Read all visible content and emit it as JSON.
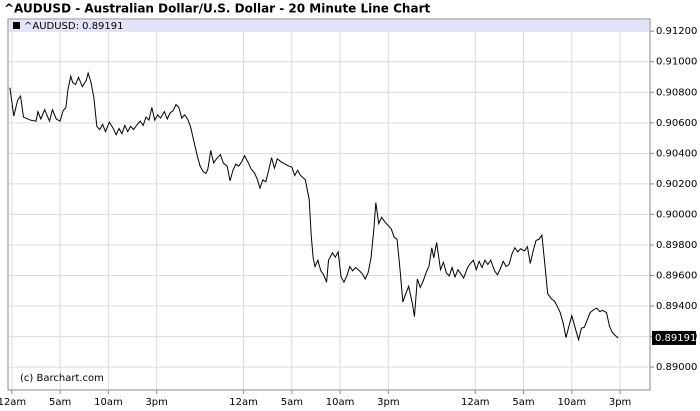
{
  "chart_data": {
    "type": "line",
    "title": "^AUDUSD - Australian Dollar/U.S. Dollar - 20 Minute Line Chart",
    "annotation": "(c) Barchart.com",
    "grid": true,
    "y_axis_side": "right",
    "xlim": [
      -0.4,
      66.1
    ],
    "ylim": [
      0.8885,
      0.9128
    ],
    "xticks": [
      {
        "value": 0,
        "label": "12am"
      },
      {
        "value": 5,
        "label": "5am"
      },
      {
        "value": 10,
        "label": "10am"
      },
      {
        "value": 15,
        "label": "3pm"
      },
      {
        "value": 24,
        "label": "12am"
      },
      {
        "value": 29,
        "label": "5am"
      },
      {
        "value": 34,
        "label": "10am"
      },
      {
        "value": 39,
        "label": "3pm"
      },
      {
        "value": 48,
        "label": "12am"
      },
      {
        "value": 53,
        "label": "5am"
      },
      {
        "value": 58,
        "label": "10am"
      },
      {
        "value": 63,
        "label": "3pm"
      }
    ],
    "yticks": [
      {
        "value": 0.89,
        "label": "0.89000"
      },
      {
        "value": 0.892,
        "label": "0.89200"
      },
      {
        "value": 0.894,
        "label": "0.89400"
      },
      {
        "value": 0.896,
        "label": "0.89600"
      },
      {
        "value": 0.898,
        "label": "0.89800"
      },
      {
        "value": 0.9,
        "label": "0.90000"
      },
      {
        "value": 0.902,
        "label": "0.90200"
      },
      {
        "value": 0.904,
        "label": "0.90400"
      },
      {
        "value": 0.906,
        "label": "0.90600"
      },
      {
        "value": 0.908,
        "label": "0.90800"
      },
      {
        "value": 0.91,
        "label": "0.91000"
      },
      {
        "value": 0.912,
        "label": "0.91200"
      }
    ],
    "x": [
      -0.2,
      0.2,
      0.6,
      0.9,
      1.2,
      1.9,
      2.5,
      2.7,
      3.0,
      3.4,
      3.9,
      4.2,
      4.6,
      5.0,
      5.3,
      5.6,
      5.8,
      6.1,
      6.3,
      6.6,
      6.9,
      7.3,
      7.7,
      7.9,
      8.2,
      8.5,
      8.8,
      9.1,
      9.4,
      9.7,
      10.1,
      10.5,
      10.8,
      11.1,
      11.4,
      11.7,
      12.0,
      12.3,
      12.6,
      13.0,
      13.3,
      13.6,
      13.9,
      14.2,
      14.5,
      14.8,
      15.1,
      15.4,
      15.8,
      16.1,
      16.4,
      16.7,
      17.0,
      17.3,
      17.6,
      17.9,
      18.2,
      18.5,
      18.9,
      19.2,
      19.5,
      19.8,
      20.1,
      20.3,
      20.6,
      20.9,
      21.2,
      21.6,
      21.9,
      22.3,
      22.6,
      22.9,
      23.2,
      23.5,
      23.8,
      24.1,
      24.5,
      24.8,
      25.1,
      25.4,
      25.7,
      26.0,
      26.3,
      26.6,
      26.9,
      27.2,
      27.5,
      27.9,
      28.3,
      28.7,
      29.0,
      29.3,
      29.6,
      29.9,
      30.4,
      30.8,
      31.0,
      31.2,
      31.4,
      31.7,
      32.0,
      32.3,
      32.6,
      32.8,
      33.2,
      33.5,
      33.8,
      34.1,
      34.4,
      34.7,
      35.0,
      35.3,
      35.6,
      36.0,
      36.3,
      36.6,
      36.9,
      37.2,
      37.5,
      37.7,
      38.0,
      38.3,
      38.7,
      39.0,
      39.3,
      39.6,
      39.9,
      40.2,
      40.5,
      40.8,
      41.1,
      41.5,
      41.7,
      42.0,
      42.3,
      42.6,
      42.9,
      43.2,
      43.5,
      43.7,
      44.0,
      44.4,
      44.7,
      45.0,
      45.3,
      45.6,
      45.9,
      46.2,
      46.5,
      46.8,
      47.2,
      47.5,
      47.8,
      48.1,
      48.4,
      48.7,
      49.0,
      49.3,
      49.6,
      50.0,
      50.3,
      50.6,
      50.9,
      51.2,
      51.5,
      51.8,
      52.1,
      52.4,
      52.7,
      53.1,
      53.4,
      53.7,
      54.0,
      54.3,
      54.6,
      54.9,
      55.2,
      55.5,
      55.9,
      56.2,
      56.5,
      56.8,
      57.1,
      57.4,
      57.7,
      58.0,
      58.3,
      58.7,
      59.0,
      59.3,
      59.6,
      59.9,
      60.3,
      60.6,
      60.9,
      61.2,
      61.6,
      61.9,
      62.2,
      62.5,
      62.8
    ],
    "series": [
      {
        "name": "^AUDUSD: 0.89191",
        "color": "#000000",
        "values": [
          0.9083,
          0.90645,
          0.90748,
          0.90775,
          0.90638,
          0.90618,
          0.90611,
          0.90673,
          0.90625,
          0.90686,
          0.90611,
          0.90686,
          0.90625,
          0.90611,
          0.90679,
          0.907,
          0.90816,
          0.90905,
          0.90864,
          0.90851,
          0.90899,
          0.90837,
          0.90878,
          0.90926,
          0.90864,
          0.90762,
          0.90577,
          0.90556,
          0.9059,
          0.90542,
          0.90604,
          0.90563,
          0.90522,
          0.90563,
          0.90529,
          0.90583,
          0.90542,
          0.90577,
          0.90556,
          0.9059,
          0.90611,
          0.90583,
          0.90638,
          0.90618,
          0.907,
          0.90618,
          0.90652,
          0.90631,
          0.90673,
          0.90625,
          0.90666,
          0.90679,
          0.9072,
          0.907,
          0.90631,
          0.90652,
          0.90625,
          0.90577,
          0.90467,
          0.90385,
          0.90316,
          0.90282,
          0.90268,
          0.90296,
          0.90419,
          0.90337,
          0.90364,
          0.90392,
          0.90337,
          0.90316,
          0.9022,
          0.90289,
          0.9033,
          0.90316,
          0.90344,
          0.90385,
          0.90337,
          0.90296,
          0.90275,
          0.90234,
          0.90172,
          0.90227,
          0.90214,
          0.90289,
          0.90371,
          0.90303,
          0.90364,
          0.90344,
          0.9033,
          0.90316,
          0.9031,
          0.90255,
          0.90289,
          0.90255,
          0.90227,
          0.90097,
          0.89871,
          0.8972,
          0.89659,
          0.897,
          0.89631,
          0.89604,
          0.89556,
          0.897,
          0.89748,
          0.8972,
          0.89755,
          0.8959,
          0.89556,
          0.89597,
          0.89659,
          0.89631,
          0.89652,
          0.89631,
          0.89611,
          0.89577,
          0.89618,
          0.89714,
          0.89905,
          0.90077,
          0.8994,
          0.89981,
          0.89946,
          0.89926,
          0.89905,
          0.89851,
          0.89837,
          0.89645,
          0.89426,
          0.89481,
          0.89529,
          0.89412,
          0.8933,
          0.89577,
          0.89522,
          0.89563,
          0.89618,
          0.89659,
          0.89782,
          0.89714,
          0.89816,
          0.89638,
          0.89686,
          0.89618,
          0.89597,
          0.89652,
          0.8959,
          0.89638,
          0.89611,
          0.89583,
          0.89652,
          0.89679,
          0.897,
          0.89638,
          0.89693,
          0.89652,
          0.897,
          0.89672,
          0.897,
          0.89631,
          0.89604,
          0.89645,
          0.89693,
          0.89659,
          0.89672,
          0.89741,
          0.89782,
          0.89755,
          0.89775,
          0.89761,
          0.89789,
          0.89679,
          0.89761,
          0.8983,
          0.89837,
          0.89864,
          0.89679,
          0.89481,
          0.89446,
          0.89433,
          0.89398,
          0.89357,
          0.89289,
          0.89193,
          0.89268,
          0.89337,
          0.89268,
          0.89179,
          0.89255,
          0.89261,
          0.89309,
          0.89357,
          0.89378,
          0.89385,
          0.89364,
          0.89371,
          0.89357,
          0.89268,
          0.89227,
          0.89207,
          0.89191
        ]
      }
    ]
  }
}
